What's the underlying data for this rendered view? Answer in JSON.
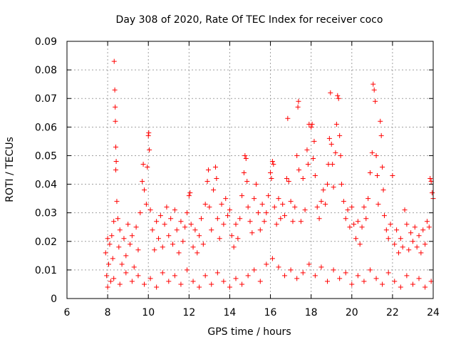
{
  "chart_data": {
    "type": "scatter",
    "title": "Day 308 of 2020, Rate Of TEC Index for receiver coco",
    "xlabel": "GPS time / hours",
    "ylabel": "ROTI / TECUs",
    "xlim": [
      6,
      24
    ],
    "ylim": [
      0,
      0.09
    ],
    "x_ticks": [
      6,
      8,
      10,
      12,
      14,
      16,
      18,
      20,
      22,
      24
    ],
    "y_ticks": [
      0,
      0.01,
      0.02,
      0.03,
      0.04,
      0.05,
      0.06,
      0.07,
      0.08,
      0.09
    ],
    "x_tick_labels": [
      "6",
      "8",
      "10",
      "12",
      "14",
      "16",
      "18",
      "20",
      "22",
      "24"
    ],
    "y_tick_labels": [
      "0",
      "0.01",
      "0.02",
      "0.03",
      "0.04",
      "0.05",
      "0.06",
      "0.07",
      "0.08",
      "0.09"
    ],
    "grid": true,
    "marker": "plus",
    "color": "#ff0000",
    "series": [
      {
        "points": [
          [
            7.9,
            0.016
          ],
          [
            7.95,
            0.008
          ],
          [
            8.0,
            0.021
          ],
          [
            8.05,
            0.012
          ],
          [
            8.1,
            0.019
          ],
          [
            8.15,
            0.006
          ],
          [
            8.2,
            0.022
          ],
          [
            8.25,
            0.014
          ],
          [
            8.3,
            0.027
          ],
          [
            8.32,
            0.083
          ],
          [
            8.35,
            0.073
          ],
          [
            8.37,
            0.067
          ],
          [
            8.38,
            0.062
          ],
          [
            8.4,
            0.053
          ],
          [
            8.42,
            0.048
          ],
          [
            8.4,
            0.045
          ],
          [
            8.45,
            0.034
          ],
          [
            8.5,
            0.028
          ],
          [
            8.55,
            0.018
          ],
          [
            8.6,
            0.024
          ],
          [
            8.7,
            0.012
          ],
          [
            8.8,
            0.021
          ],
          [
            8.9,
            0.015
          ],
          [
            9.0,
            0.026
          ],
          [
            9.1,
            0.019
          ],
          [
            9.2,
            0.022
          ],
          [
            9.3,
            0.011
          ],
          [
            9.4,
            0.025
          ],
          [
            9.5,
            0.017
          ],
          [
            9.6,
            0.03
          ],
          [
            9.7,
            0.041
          ],
          [
            9.75,
            0.047
          ],
          [
            9.8,
            0.038
          ],
          [
            9.9,
            0.033
          ],
          [
            9.95,
            0.046
          ],
          [
            10.0,
            0.057
          ],
          [
            10.02,
            0.058
          ],
          [
            10.05,
            0.052
          ],
          [
            10.1,
            0.031
          ],
          [
            10.2,
            0.024
          ],
          [
            10.3,
            0.017
          ],
          [
            10.4,
            0.027
          ],
          [
            10.5,
            0.021
          ],
          [
            10.6,
            0.029
          ],
          [
            10.7,
            0.018
          ],
          [
            10.8,
            0.026
          ],
          [
            10.9,
            0.032
          ],
          [
            11.0,
            0.022
          ],
          [
            11.1,
            0.028
          ],
          [
            11.2,
            0.019
          ],
          [
            11.3,
            0.031
          ],
          [
            11.4,
            0.024
          ],
          [
            11.5,
            0.016
          ],
          [
            11.6,
            0.027
          ],
          [
            11.7,
            0.02
          ],
          [
            11.8,
            0.025
          ],
          [
            11.9,
            0.03
          ],
          [
            12.0,
            0.036
          ],
          [
            12.05,
            0.037
          ],
          [
            12.1,
            0.026
          ],
          [
            12.2,
            0.018
          ],
          [
            12.3,
            0.024
          ],
          [
            12.4,
            0.016
          ],
          [
            12.5,
            0.022
          ],
          [
            12.6,
            0.028
          ],
          [
            12.7,
            0.019
          ],
          [
            12.8,
            0.033
          ],
          [
            12.9,
            0.041
          ],
          [
            12.95,
            0.045
          ],
          [
            13.0,
            0.032
          ],
          [
            13.1,
            0.024
          ],
          [
            13.2,
            0.038
          ],
          [
            13.3,
            0.046
          ],
          [
            13.35,
            0.042
          ],
          [
            13.4,
            0.028
          ],
          [
            13.5,
            0.021
          ],
          [
            13.6,
            0.033
          ],
          [
            13.7,
            0.026
          ],
          [
            13.8,
            0.035
          ],
          [
            13.9,
            0.029
          ],
          [
            14.0,
            0.031
          ],
          [
            14.1,
            0.022
          ],
          [
            14.2,
            0.018
          ],
          [
            14.3,
            0.026
          ],
          [
            14.4,
            0.021
          ],
          [
            14.5,
            0.028
          ],
          [
            14.6,
            0.036
          ],
          [
            14.7,
            0.044
          ],
          [
            14.75,
            0.05
          ],
          [
            14.8,
            0.049
          ],
          [
            14.85,
            0.041
          ],
          [
            14.9,
            0.032
          ],
          [
            15.0,
            0.027
          ],
          [
            15.1,
            0.023
          ],
          [
            15.2,
            0.035
          ],
          [
            15.3,
            0.04
          ],
          [
            15.4,
            0.03
          ],
          [
            15.5,
            0.024
          ],
          [
            15.6,
            0.033
          ],
          [
            15.7,
            0.027
          ],
          [
            15.8,
            0.03
          ],
          [
            15.9,
            0.036
          ],
          [
            16.0,
            0.044
          ],
          [
            16.05,
            0.042
          ],
          [
            16.1,
            0.048
          ],
          [
            16.15,
            0.047
          ],
          [
            16.2,
            0.032
          ],
          [
            16.3,
            0.026
          ],
          [
            16.4,
            0.035
          ],
          [
            16.5,
            0.028
          ],
          [
            16.6,
            0.033
          ],
          [
            16.7,
            0.029
          ],
          [
            16.8,
            0.042
          ],
          [
            16.85,
            0.063
          ],
          [
            16.9,
            0.041
          ],
          [
            17.0,
            0.034
          ],
          [
            17.1,
            0.027
          ],
          [
            17.2,
            0.032
          ],
          [
            17.3,
            0.05
          ],
          [
            17.35,
            0.067
          ],
          [
            17.38,
            0.069
          ],
          [
            17.4,
            0.045
          ],
          [
            17.5,
            0.027
          ],
          [
            17.6,
            0.042
          ],
          [
            17.7,
            0.031
          ],
          [
            17.8,
            0.052
          ],
          [
            17.85,
            0.047
          ],
          [
            17.9,
            0.061
          ],
          [
            18.0,
            0.06
          ],
          [
            18.05,
            0.061
          ],
          [
            18.1,
            0.049
          ],
          [
            18.15,
            0.055
          ],
          [
            18.2,
            0.043
          ],
          [
            18.3,
            0.032
          ],
          [
            18.4,
            0.028
          ],
          [
            18.5,
            0.034
          ],
          [
            18.6,
            0.038
          ],
          [
            18.7,
            0.033
          ],
          [
            18.8,
            0.04
          ],
          [
            18.85,
            0.047
          ],
          [
            18.9,
            0.056
          ],
          [
            18.95,
            0.072
          ],
          [
            19.0,
            0.054
          ],
          [
            19.05,
            0.047
          ],
          [
            19.1,
            0.039
          ],
          [
            19.2,
            0.051
          ],
          [
            19.25,
            0.061
          ],
          [
            19.3,
            0.071
          ],
          [
            19.35,
            0.07
          ],
          [
            19.4,
            0.057
          ],
          [
            19.45,
            0.05
          ],
          [
            19.5,
            0.04
          ],
          [
            19.6,
            0.034
          ],
          [
            19.7,
            0.028
          ],
          [
            19.8,
            0.031
          ],
          [
            19.9,
            0.025
          ],
          [
            20.0,
            0.032
          ],
          [
            20.1,
            0.026
          ],
          [
            20.2,
            0.021
          ],
          [
            20.3,
            0.027
          ],
          [
            20.4,
            0.019
          ],
          [
            20.5,
            0.025
          ],
          [
            20.6,
            0.032
          ],
          [
            20.7,
            0.028
          ],
          [
            20.8,
            0.035
          ],
          [
            20.9,
            0.044
          ],
          [
            21.0,
            0.051
          ],
          [
            21.05,
            0.075
          ],
          [
            21.1,
            0.073
          ],
          [
            21.15,
            0.069
          ],
          [
            21.2,
            0.05
          ],
          [
            21.25,
            0.043
          ],
          [
            21.3,
            0.033
          ],
          [
            21.4,
            0.062
          ],
          [
            21.45,
            0.057
          ],
          [
            21.5,
            0.046
          ],
          [
            21.55,
            0.038
          ],
          [
            21.6,
            0.029
          ],
          [
            21.7,
            0.024
          ],
          [
            21.8,
            0.021
          ],
          [
            21.9,
            0.026
          ],
          [
            22.0,
            0.043
          ],
          [
            22.1,
            0.019
          ],
          [
            22.2,
            0.024
          ],
          [
            22.3,
            0.016
          ],
          [
            22.4,
            0.021
          ],
          [
            22.5,
            0.018
          ],
          [
            22.6,
            0.031
          ],
          [
            22.7,
            0.026
          ],
          [
            22.8,
            0.017
          ],
          [
            22.9,
            0.023
          ],
          [
            23.0,
            0.02
          ],
          [
            23.1,
            0.025
          ],
          [
            23.2,
            0.018
          ],
          [
            23.3,
            0.022
          ],
          [
            23.4,
            0.016
          ],
          [
            23.5,
            0.024
          ],
          [
            23.6,
            0.019
          ],
          [
            23.7,
            0.027
          ],
          [
            23.8,
            0.025
          ],
          [
            23.85,
            0.042
          ],
          [
            23.9,
            0.041
          ],
          [
            23.95,
            0.037
          ],
          [
            24.0,
            0.035
          ],
          [
            8.0,
            0.004
          ],
          [
            8.3,
            0.007
          ],
          [
            8.6,
            0.005
          ],
          [
            8.9,
            0.009
          ],
          [
            9.2,
            0.006
          ],
          [
            9.5,
            0.008
          ],
          [
            9.8,
            0.005
          ],
          [
            10.1,
            0.007
          ],
          [
            10.4,
            0.004
          ],
          [
            10.7,
            0.009
          ],
          [
            11.0,
            0.006
          ],
          [
            11.3,
            0.008
          ],
          [
            11.6,
            0.005
          ],
          [
            11.9,
            0.01
          ],
          [
            12.2,
            0.006
          ],
          [
            12.5,
            0.004
          ],
          [
            12.8,
            0.008
          ],
          [
            13.1,
            0.005
          ],
          [
            13.4,
            0.009
          ],
          [
            13.7,
            0.006
          ],
          [
            14.0,
            0.004
          ],
          [
            14.3,
            0.007
          ],
          [
            14.6,
            0.005
          ],
          [
            14.9,
            0.008
          ],
          [
            15.2,
            0.01
          ],
          [
            15.5,
            0.006
          ],
          [
            15.8,
            0.012
          ],
          [
            16.1,
            0.014
          ],
          [
            16.4,
            0.011
          ],
          [
            16.7,
            0.008
          ],
          [
            17.0,
            0.01
          ],
          [
            17.3,
            0.007
          ],
          [
            17.6,
            0.009
          ],
          [
            17.9,
            0.012
          ],
          [
            18.2,
            0.008
          ],
          [
            18.5,
            0.011
          ],
          [
            18.8,
            0.006
          ],
          [
            19.1,
            0.01
          ],
          [
            19.4,
            0.007
          ],
          [
            19.7,
            0.009
          ],
          [
            20.0,
            0.005
          ],
          [
            20.3,
            0.008
          ],
          [
            20.6,
            0.006
          ],
          [
            20.9,
            0.01
          ],
          [
            21.2,
            0.007
          ],
          [
            21.5,
            0.005
          ],
          [
            21.8,
            0.009
          ],
          [
            22.1,
            0.006
          ],
          [
            22.4,
            0.004
          ],
          [
            22.7,
            0.008
          ],
          [
            23.0,
            0.005
          ],
          [
            23.3,
            0.007
          ],
          [
            23.6,
            0.004
          ],
          [
            23.9,
            0.006
          ]
        ]
      }
    ]
  }
}
